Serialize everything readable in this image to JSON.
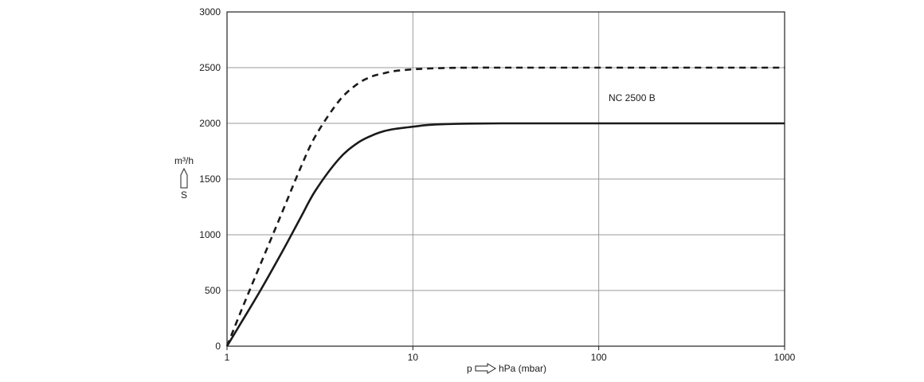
{
  "chart_data": {
    "type": "line",
    "xscale": "log",
    "xlim": [
      1,
      1000
    ],
    "ylim": [
      0,
      3000
    ],
    "xticks": [
      "1",
      "10",
      "100",
      "1000"
    ],
    "yticks": [
      "0",
      "500",
      "1000",
      "1500",
      "2000",
      "2500",
      "3000"
    ],
    "xlabel_left": "p",
    "xlabel_right": "hPa (mbar)",
    "ylabel_unit": "m³/h",
    "ylabel_symbol": "S",
    "annotation": "NC 2500 B",
    "grid": true,
    "series": [
      {
        "style": "dashed",
        "color": "#1a1a1a",
        "x": [
          1,
          1.2,
          1.5,
          2,
          2.5,
          3,
          4,
          5,
          6,
          7,
          8,
          10,
          12,
          15,
          20,
          30,
          50,
          100,
          200,
          500,
          1000
        ],
        "y": [
          0,
          330,
          720,
          1220,
          1610,
          1890,
          2200,
          2350,
          2420,
          2450,
          2470,
          2485,
          2492,
          2497,
          2500,
          2500,
          2500,
          2500,
          2500,
          2500,
          2500
        ]
      },
      {
        "style": "solid",
        "color": "#1a1a1a",
        "x": [
          1,
          1.2,
          1.5,
          2,
          2.5,
          3,
          4,
          5,
          6,
          7,
          8,
          10,
          12,
          15,
          20,
          30,
          50,
          100,
          200,
          500,
          1000
        ],
        "y": [
          0,
          220,
          490,
          860,
          1160,
          1400,
          1680,
          1820,
          1890,
          1930,
          1950,
          1970,
          1985,
          1993,
          1998,
          2000,
          2000,
          2000,
          2000,
          2000,
          2000
        ]
      }
    ]
  }
}
